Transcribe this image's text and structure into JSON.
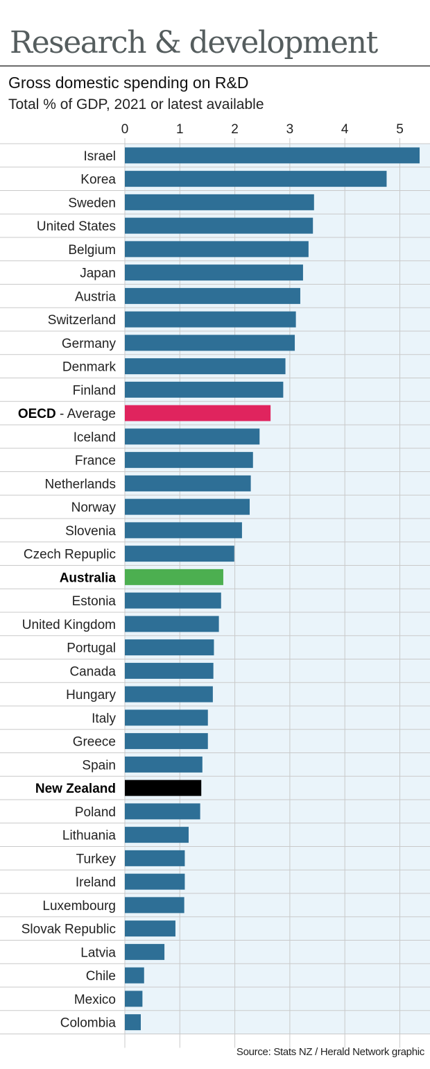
{
  "header": {
    "headline": "Research & development"
  },
  "source": "Source: Stats NZ / Herald Network graphic",
  "colors": {
    "default_bar": "#2e6f96",
    "oecd_bar": "#e0245e",
    "australia_bar": "#4caf50",
    "new_zealand_bar": "#000000",
    "plot_background": "#eaf4fa",
    "grid": "#c9c9c9"
  },
  "chart_data": {
    "type": "bar",
    "orientation": "horizontal",
    "title": "Gross domestic spending on R&D",
    "subtitle": "Total % of GDP, 2021 or latest available",
    "xlim": [
      0,
      5.5
    ],
    "xticks": [
      0,
      1,
      2,
      3,
      4,
      5
    ],
    "grid": true,
    "categories": [
      {
        "label": "Israel",
        "value": 5.36
      },
      {
        "label": "Korea",
        "value": 4.76
      },
      {
        "label": "Sweden",
        "value": 3.44
      },
      {
        "label": "United States",
        "value": 3.42
      },
      {
        "label": "Belgium",
        "value": 3.34
      },
      {
        "label": "Japan",
        "value": 3.24
      },
      {
        "label": "Austria",
        "value": 3.19
      },
      {
        "label": "Switzerland",
        "value": 3.11
      },
      {
        "label": "Germany",
        "value": 3.09
      },
      {
        "label": "Denmark",
        "value": 2.92
      },
      {
        "label": "Finland",
        "value": 2.88
      },
      {
        "label": "OECD",
        "suffix": " - Average",
        "value": 2.65,
        "bold": true,
        "highlight": "oecd_bar"
      },
      {
        "label": "Iceland",
        "value": 2.45
      },
      {
        "label": "France",
        "value": 2.33
      },
      {
        "label": "Netherlands",
        "value": 2.29
      },
      {
        "label": "Norway",
        "value": 2.27
      },
      {
        "label": "Slovenia",
        "value": 2.13
      },
      {
        "label": "Czech Repuplic",
        "value": 1.99
      },
      {
        "label": "Australia",
        "value": 1.79,
        "bold": true,
        "highlight": "australia_bar"
      },
      {
        "label": "Estonia",
        "value": 1.75
      },
      {
        "label": "United Kingdom",
        "value": 1.71
      },
      {
        "label": "Portugal",
        "value": 1.62
      },
      {
        "label": "Canada",
        "value": 1.61
      },
      {
        "label": "Hungary",
        "value": 1.6
      },
      {
        "label": "Italy",
        "value": 1.51
      },
      {
        "label": "Greece",
        "value": 1.51
      },
      {
        "label": "Spain",
        "value": 1.41
      },
      {
        "label": "New Zealand",
        "value": 1.39,
        "bold": true,
        "highlight": "new_zealand_bar"
      },
      {
        "label": "Poland",
        "value": 1.37
      },
      {
        "label": "Lithuania",
        "value": 1.16
      },
      {
        "label": "Turkey",
        "value": 1.09
      },
      {
        "label": "Ireland",
        "value": 1.09
      },
      {
        "label": "Luxembourg",
        "value": 1.08
      },
      {
        "label": "Slovak Republic",
        "value": 0.92
      },
      {
        "label": "Latvia",
        "value": 0.72
      },
      {
        "label": "Chile",
        "value": 0.35
      },
      {
        "label": "Mexico",
        "value": 0.32
      },
      {
        "label": "Colombia",
        "value": 0.29
      }
    ]
  }
}
